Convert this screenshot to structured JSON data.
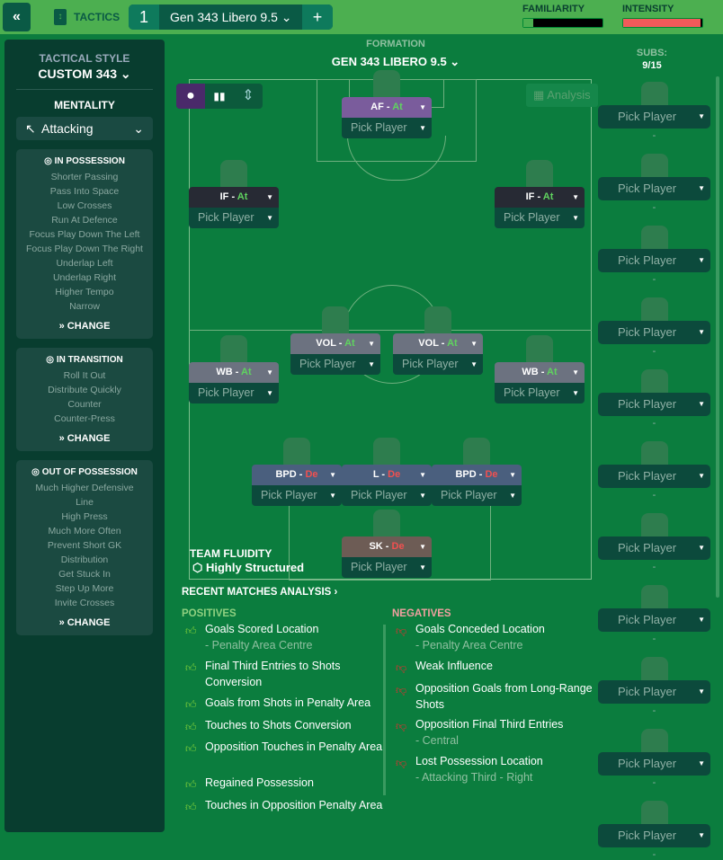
{
  "top": {
    "tactics_label": "TACTICS",
    "tab_number": "1",
    "tab_name": "Gen 343 Libero 9.5",
    "familiarity_label": "FAMILIARITY",
    "intensity_label": "INTENSITY",
    "familiarity_level": 0.12,
    "intensity_level": 0.98
  },
  "left": {
    "style_label": "TACTICAL STYLE",
    "style_value": "CUSTOM 343",
    "mentality_label": "MENTALITY",
    "mentality_value": "Attacking",
    "in_possession": {
      "title": "IN POSSESSION",
      "items": [
        "Shorter Passing",
        "Pass Into Space",
        "Low Crosses",
        "Run At Defence",
        "Focus Play Down The Left",
        "Focus Play Down The Right",
        "Underlap Left",
        "Underlap Right",
        "Higher Tempo",
        "Narrow"
      ]
    },
    "in_transition": {
      "title": "IN TRANSITION",
      "items": [
        "Roll It Out",
        "Distribute Quickly",
        "Counter",
        "Counter-Press"
      ]
    },
    "out_possession": {
      "title": "OUT OF POSSESSION",
      "items": [
        "Much Higher Defensive",
        "Line",
        "High Press",
        "Much More Often",
        "Prevent Short GK",
        "Distribution",
        "Get Stuck In",
        "Step Up More",
        "Invite Crosses"
      ]
    },
    "change_label": "CHANGE"
  },
  "formation": {
    "label": "FORMATION",
    "name": "GEN 343 LIBERO 9.5",
    "analysis_label": "Analysis",
    "pick": "Pick Player",
    "positions": [
      {
        "role": "AF",
        "duty": "At",
        "color": "#7a5c9c"
      },
      {
        "role": "IF",
        "duty": "At",
        "color": "#272a34"
      },
      {
        "role": "IF",
        "duty": "At",
        "color": "#272a34"
      },
      {
        "role": "VOL",
        "duty": "At",
        "color": "#6c7280"
      },
      {
        "role": "VOL",
        "duty": "At",
        "color": "#6c7280"
      },
      {
        "role": "WB",
        "duty": "At",
        "color": "#6c7280"
      },
      {
        "role": "WB",
        "duty": "At",
        "color": "#6c7280"
      },
      {
        "role": "BPD",
        "duty": "De",
        "color": "#4a5f7e"
      },
      {
        "role": "L",
        "duty": "De",
        "color": "#4a5f7e"
      },
      {
        "role": "BPD",
        "duty": "De",
        "color": "#4a5f7e"
      },
      {
        "role": "SK",
        "duty": "De",
        "color": "#6d5c55"
      }
    ]
  },
  "subs": {
    "label": "SUBS:",
    "count": "9/15",
    "pick": "Pick Player",
    "dash": "-"
  },
  "fluidity": {
    "label": "TEAM FLUIDITY",
    "value": "Highly Structured"
  },
  "analysis": {
    "title": "RECENT MATCHES ANALYSIS",
    "positives_label": "POSITIVES",
    "negatives_label": "NEGATIVES",
    "positives": [
      {
        "t": "Goals Scored Location",
        "s": "- Penalty Area Centre"
      },
      {
        "t": "Final Third Entries to Shots Conversion"
      },
      {
        "t": "Goals from Shots in Penalty Area"
      },
      {
        "t": "Touches to Shots Conversion"
      },
      {
        "t": "Opposition Touches in Penalty Area"
      },
      {
        "t": "Regained Possession"
      },
      {
        "t": "Touches in Opposition Penalty Area"
      }
    ],
    "negatives": [
      {
        "t": "Goals Conceded Location",
        "s": "- Penalty Area Centre"
      },
      {
        "t": "Weak Influence"
      },
      {
        "t": "Opposition Goals from Long-Range Shots"
      },
      {
        "t": "Opposition Final Third Entries",
        "s": "- Central"
      },
      {
        "t": "Lost Possession Location",
        "s": "- Attacking Third - Right"
      }
    ]
  }
}
